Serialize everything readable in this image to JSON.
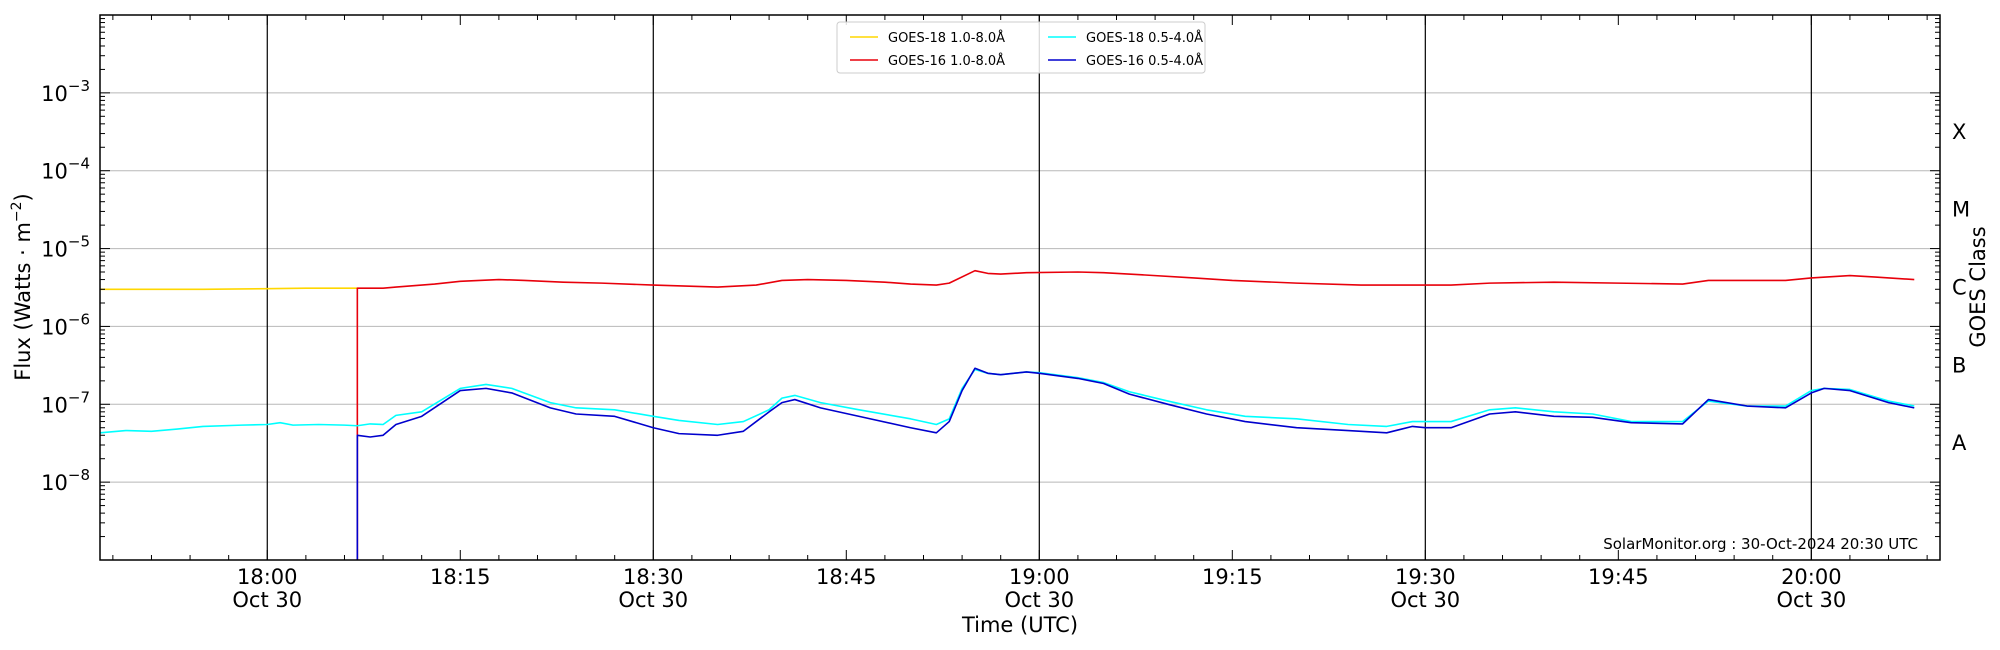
{
  "chart_data": {
    "type": "line",
    "ylabel": "Flux (Watts · m⁻²)",
    "xlabel": "Time (UTC)",
    "right_label": "GOES Class",
    "y_scale": "log",
    "ylim": [
      1e-09,
      0.01
    ],
    "xlim": [
      "17:47",
      "20:10"
    ],
    "grid": "horizontal",
    "legend_position": "top-center",
    "y_ticks": [
      {
        "value": 1e-08,
        "base": "10",
        "exp": "−8"
      },
      {
        "value": 1e-07,
        "base": "10",
        "exp": "−7"
      },
      {
        "value": 1e-06,
        "base": "10",
        "exp": "−6"
      },
      {
        "value": 1e-05,
        "base": "10",
        "exp": "−5"
      },
      {
        "value": 0.0001,
        "base": "10",
        "exp": "−4"
      },
      {
        "value": 0.001,
        "base": "10",
        "exp": "−3"
      }
    ],
    "x_ticks": [
      {
        "time": "18:00",
        "label": "18:00",
        "date": "Oct 30",
        "vline": true
      },
      {
        "time": "18:15",
        "label": "18:15",
        "date": "",
        "vline": false
      },
      {
        "time": "18:30",
        "label": "18:30",
        "date": "Oct 30",
        "vline": true
      },
      {
        "time": "18:45",
        "label": "18:45",
        "date": "",
        "vline": false
      },
      {
        "time": "19:00",
        "label": "19:00",
        "date": "Oct 30",
        "vline": true
      },
      {
        "time": "19:15",
        "label": "19:15",
        "date": "",
        "vline": false
      },
      {
        "time": "19:30",
        "label": "19:30",
        "date": "Oct 30",
        "vline": true
      },
      {
        "time": "19:45",
        "label": "19:45",
        "date": "",
        "vline": false
      },
      {
        "time": "20:00",
        "label": "20:00",
        "date": "Oct 30",
        "vline": true
      }
    ],
    "goes_classes": [
      {
        "label": "X",
        "value": 0.000316
      },
      {
        "label": "M",
        "value": 3.16e-05
      },
      {
        "label": "C",
        "value": 3.16e-06
      },
      {
        "label": "B",
        "value": 3.16e-07
      },
      {
        "label": "A",
        "value": 3.16e-08
      }
    ],
    "series": [
      {
        "name": "GOES-18 1.0-8.0Å",
        "color": "#ffd700",
        "points": [
          [
            "17:47",
            3e-06
          ],
          [
            "17:50",
            3e-06
          ],
          [
            "17:55",
            3e-06
          ],
          [
            "18:00",
            3.05e-06
          ],
          [
            "18:03",
            3.1e-06
          ],
          [
            "18:07",
            3.1e-06
          ]
        ]
      },
      {
        "name": "GOES-16 1.0-8.0Å",
        "color": "#e8000b",
        "points": [
          [
            "18:07",
            1e-09
          ],
          [
            "18:07",
            3.1e-06
          ],
          [
            "18:09",
            3.1e-06
          ],
          [
            "18:10",
            3.2e-06
          ],
          [
            "18:13",
            3.5e-06
          ],
          [
            "18:15",
            3.8e-06
          ],
          [
            "18:18",
            4e-06
          ],
          [
            "18:20",
            3.9e-06
          ],
          [
            "18:23",
            3.7e-06
          ],
          [
            "18:26",
            3.6e-06
          ],
          [
            "18:30",
            3.4e-06
          ],
          [
            "18:35",
            3.2e-06
          ],
          [
            "18:38",
            3.4e-06
          ],
          [
            "18:40",
            3.9e-06
          ],
          [
            "18:42",
            4e-06
          ],
          [
            "18:45",
            3.9e-06
          ],
          [
            "18:48",
            3.7e-06
          ],
          [
            "18:50",
            3.5e-06
          ],
          [
            "18:52",
            3.4e-06
          ],
          [
            "18:53",
            3.6e-06
          ],
          [
            "18:55",
            5.2e-06
          ],
          [
            "18:56",
            4.8e-06
          ],
          [
            "18:57",
            4.7e-06
          ],
          [
            "18:59",
            4.9e-06
          ],
          [
            "19:03",
            5e-06
          ],
          [
            "19:05",
            4.9e-06
          ],
          [
            "19:08",
            4.6e-06
          ],
          [
            "19:12",
            4.2e-06
          ],
          [
            "19:15",
            3.9e-06
          ],
          [
            "19:20",
            3.6e-06
          ],
          [
            "19:25",
            3.4e-06
          ],
          [
            "19:30",
            3.4e-06
          ],
          [
            "19:32",
            3.4e-06
          ],
          [
            "19:35",
            3.6e-06
          ],
          [
            "19:40",
            3.7e-06
          ],
          [
            "19:45",
            3.6e-06
          ],
          [
            "19:50",
            3.5e-06
          ],
          [
            "19:52",
            3.9e-06
          ],
          [
            "19:55",
            3.9e-06
          ],
          [
            "19:58",
            3.9e-06
          ],
          [
            "20:00",
            4.2e-06
          ],
          [
            "20:03",
            4.5e-06
          ],
          [
            "20:05",
            4.3e-06
          ],
          [
            "20:08",
            4e-06
          ]
        ]
      },
      {
        "name": "GOES-18 0.5-4.0Å",
        "color": "#00ffff",
        "points": [
          [
            "17:47",
            4.3e-08
          ],
          [
            "17:49",
            4.6e-08
          ],
          [
            "17:51",
            4.5e-08
          ],
          [
            "17:53",
            4.8e-08
          ],
          [
            "17:55",
            5.2e-08
          ],
          [
            "17:58",
            5.4e-08
          ],
          [
            "18:00",
            5.5e-08
          ],
          [
            "18:01",
            5.8e-08
          ],
          [
            "18:02",
            5.4e-08
          ],
          [
            "18:04",
            5.5e-08
          ],
          [
            "18:06",
            5.4e-08
          ],
          [
            "18:07",
            5.3e-08
          ],
          [
            "18:08",
            5.6e-08
          ],
          [
            "18:09",
            5.5e-08
          ],
          [
            "18:10",
            7.2e-08
          ],
          [
            "18:12",
            8e-08
          ],
          [
            "18:15",
            1.6e-07
          ],
          [
            "18:17",
            1.8e-07
          ],
          [
            "18:19",
            1.6e-07
          ],
          [
            "18:22",
            1.05e-07
          ],
          [
            "18:24",
            9e-08
          ],
          [
            "18:27",
            8.5e-08
          ],
          [
            "18:30",
            7e-08
          ],
          [
            "18:32",
            6.2e-08
          ],
          [
            "18:35",
            5.5e-08
          ],
          [
            "18:37",
            6e-08
          ],
          [
            "18:39",
            8.5e-08
          ],
          [
            "18:40",
            1.2e-07
          ],
          [
            "18:41",
            1.3e-07
          ],
          [
            "18:43",
            1.05e-07
          ],
          [
            "18:46",
            8.5e-08
          ],
          [
            "18:50",
            6.5e-08
          ],
          [
            "18:52",
            5.5e-08
          ],
          [
            "18:53",
            6.5e-08
          ],
          [
            "18:54",
            1.6e-07
          ],
          [
            "18:55",
            2.8e-07
          ],
          [
            "18:56",
            2.5e-07
          ],
          [
            "18:57",
            2.4e-07
          ],
          [
            "18:59",
            2.6e-07
          ],
          [
            "19:00",
            2.55e-07
          ],
          [
            "19:03",
            2.2e-07
          ],
          [
            "19:05",
            1.9e-07
          ],
          [
            "19:07",
            1.45e-07
          ],
          [
            "19:10",
            1.1e-07
          ],
          [
            "19:13",
            8.5e-08
          ],
          [
            "19:16",
            7e-08
          ],
          [
            "19:20",
            6.5e-08
          ],
          [
            "19:24",
            5.5e-08
          ],
          [
            "19:27",
            5.2e-08
          ],
          [
            "19:29",
            6e-08
          ],
          [
            "19:30",
            6e-08
          ],
          [
            "19:32",
            6e-08
          ],
          [
            "19:35",
            8.5e-08
          ],
          [
            "19:37",
            9e-08
          ],
          [
            "19:40",
            8e-08
          ],
          [
            "19:43",
            7.5e-08
          ],
          [
            "19:46",
            6e-08
          ],
          [
            "19:50",
            6e-08
          ],
          [
            "19:52",
            1.1e-07
          ],
          [
            "19:55",
            9.5e-08
          ],
          [
            "19:58",
            9.5e-08
          ],
          [
            "20:00",
            1.5e-07
          ],
          [
            "20:01",
            1.6e-07
          ],
          [
            "20:03",
            1.55e-07
          ],
          [
            "20:06",
            1.1e-07
          ],
          [
            "20:08",
            9.5e-08
          ]
        ]
      },
      {
        "name": "GOES-16 0.5-4.0Å",
        "color": "#0000cd",
        "points": [
          [
            "18:07",
            1e-09
          ],
          [
            "18:07",
            4e-08
          ],
          [
            "18:08",
            3.8e-08
          ],
          [
            "18:09",
            4e-08
          ],
          [
            "18:10",
            5.5e-08
          ],
          [
            "18:12",
            7e-08
          ],
          [
            "18:15",
            1.5e-07
          ],
          [
            "18:17",
            1.6e-07
          ],
          [
            "18:19",
            1.4e-07
          ],
          [
            "18:22",
            9e-08
          ],
          [
            "18:24",
            7.5e-08
          ],
          [
            "18:27",
            7e-08
          ],
          [
            "18:30",
            5e-08
          ],
          [
            "18:32",
            4.2e-08
          ],
          [
            "18:35",
            4e-08
          ],
          [
            "18:37",
            4.5e-08
          ],
          [
            "18:39",
            8e-08
          ],
          [
            "18:40",
            1.05e-07
          ],
          [
            "18:41",
            1.15e-07
          ],
          [
            "18:43",
            9e-08
          ],
          [
            "18:46",
            7e-08
          ],
          [
            "18:50",
            5e-08
          ],
          [
            "18:52",
            4.3e-08
          ],
          [
            "18:53",
            6e-08
          ],
          [
            "18:54",
            1.5e-07
          ],
          [
            "18:55",
            2.9e-07
          ],
          [
            "18:56",
            2.5e-07
          ],
          [
            "18:57",
            2.4e-07
          ],
          [
            "18:59",
            2.6e-07
          ],
          [
            "19:00",
            2.5e-07
          ],
          [
            "19:03",
            2.15e-07
          ],
          [
            "19:05",
            1.85e-07
          ],
          [
            "19:07",
            1.35e-07
          ],
          [
            "19:10",
            1e-07
          ],
          [
            "19:13",
            7.5e-08
          ],
          [
            "19:16",
            6e-08
          ],
          [
            "19:20",
            5e-08
          ],
          [
            "19:24",
            4.6e-08
          ],
          [
            "19:27",
            4.3e-08
          ],
          [
            "19:29",
            5.2e-08
          ],
          [
            "19:30",
            5e-08
          ],
          [
            "19:32",
            5e-08
          ],
          [
            "19:35",
            7.5e-08
          ],
          [
            "19:37",
            8e-08
          ],
          [
            "19:40",
            7e-08
          ],
          [
            "19:43",
            6.8e-08
          ],
          [
            "19:46",
            5.8e-08
          ],
          [
            "19:50",
            5.6e-08
          ],
          [
            "19:52",
            1.15e-07
          ],
          [
            "19:55",
            9.5e-08
          ],
          [
            "19:58",
            9e-08
          ],
          [
            "20:00",
            1.4e-07
          ],
          [
            "20:01",
            1.6e-07
          ],
          [
            "20:03",
            1.5e-07
          ],
          [
            "20:06",
            1.05e-07
          ],
          [
            "20:08",
            9e-08
          ]
        ]
      }
    ],
    "legend_order": [
      0,
      2,
      1,
      3
    ],
    "footer": "SolarMonitor.org : 30-Oct-2024 20:30 UTC"
  }
}
